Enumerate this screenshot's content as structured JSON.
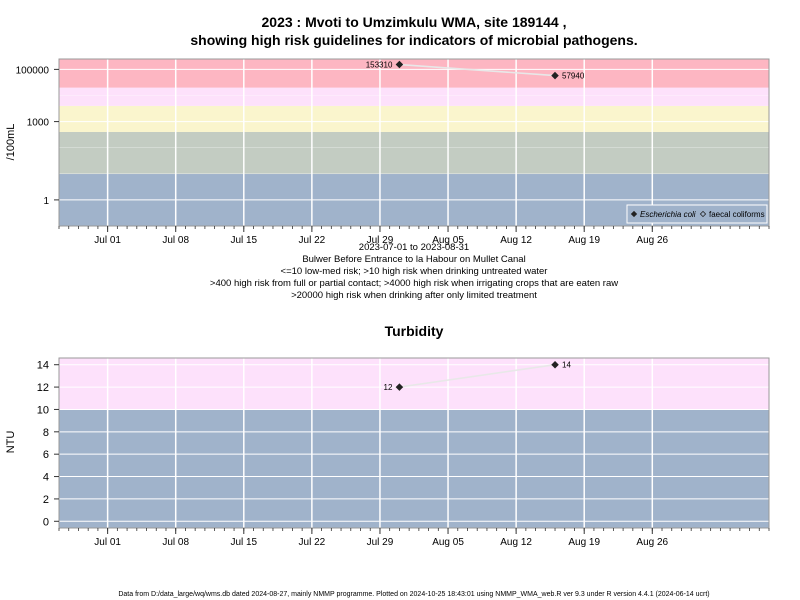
{
  "chart_data": [
    {
      "type": "line",
      "title_line1": "2023 : Mvoti to Umzimkulu WMA, site 189144 ,",
      "title_line2": "showing high risk guidelines for indicators of microbial pathogens.",
      "ylabel": "/100mL",
      "yscale": "log",
      "ylim": [
        0.1,
        250000
      ],
      "yticks": [
        {
          "value": 1,
          "label": "1"
        },
        {
          "value": 1000,
          "label": "1000"
        },
        {
          "value": 100000,
          "label": "100000"
        }
      ],
      "xlim": [
        "2023-06-26",
        "2023-09-07"
      ],
      "xticks": [
        {
          "date": "2023-07-01",
          "label": "Jul 01"
        },
        {
          "date": "2023-07-08",
          "label": "Jul 08"
        },
        {
          "date": "2023-07-15",
          "label": "Jul 15"
        },
        {
          "date": "2023-07-22",
          "label": "Jul 22"
        },
        {
          "date": "2023-07-29",
          "label": "Jul 29"
        },
        {
          "date": "2023-08-05",
          "label": "Aug 05"
        },
        {
          "date": "2023-08-12",
          "label": "Aug 12"
        },
        {
          "date": "2023-08-19",
          "label": "Aug 19"
        },
        {
          "date": "2023-08-26",
          "label": "Aug 26"
        }
      ],
      "bands": [
        {
          "from": 0.1,
          "to": 10,
          "color": "#a0b3cb"
        },
        {
          "from": 10,
          "to": 400,
          "color": "#c3ccc2"
        },
        {
          "from": 400,
          "to": 4000,
          "color": "#faf5cd"
        },
        {
          "from": 4000,
          "to": 20000,
          "color": "#fde1fb"
        },
        {
          "from": 20000,
          "to": 250000,
          "color": "#fdb6c2"
        }
      ],
      "series": [
        {
          "name": "Escherichia coli",
          "marker": "diamond-filled",
          "points": [
            {
              "x": "2023-07-31",
              "y": 153310,
              "label": "153310"
            },
            {
              "x": "2023-08-16",
              "y": 57940,
              "label": "57940"
            }
          ]
        },
        {
          "name": "faecal coliforms",
          "marker": "diamond-open",
          "points": []
        }
      ],
      "legend_position": "bottom-right",
      "notes": [
        "2023-07-01 to 2023-08-31",
        "Bulwer Before Entrance to la Habour on Mullet Canal",
        "<=10 low-med risk; >10 high risk when drinking untreated water",
        ">400 high risk from full or partial contact; >4000 high risk when irrigating crops that are eaten raw",
        ">20000 high risk when drinking after only limited treatment"
      ]
    },
    {
      "type": "line",
      "title": "Turbidity",
      "ylabel": "NTU",
      "ylim": [
        -0.6,
        14.6
      ],
      "yticks": [
        {
          "value": 0,
          "label": "0"
        },
        {
          "value": 2,
          "label": "2"
        },
        {
          "value": 4,
          "label": "4"
        },
        {
          "value": 6,
          "label": "6"
        },
        {
          "value": 8,
          "label": "8"
        },
        {
          "value": 10,
          "label": "10"
        },
        {
          "value": 12,
          "label": "12"
        },
        {
          "value": 14,
          "label": "14"
        }
      ],
      "xlim": [
        "2023-06-26",
        "2023-09-07"
      ],
      "xticks": [
        {
          "date": "2023-07-01",
          "label": "Jul 01"
        },
        {
          "date": "2023-07-08",
          "label": "Jul 08"
        },
        {
          "date": "2023-07-15",
          "label": "Jul 15"
        },
        {
          "date": "2023-07-22",
          "label": "Jul 22"
        },
        {
          "date": "2023-07-29",
          "label": "Jul 29"
        },
        {
          "date": "2023-08-05",
          "label": "Aug 05"
        },
        {
          "date": "2023-08-12",
          "label": "Aug 12"
        },
        {
          "date": "2023-08-19",
          "label": "Aug 19"
        },
        {
          "date": "2023-08-26",
          "label": "Aug 26"
        }
      ],
      "bands": [
        {
          "from": -0.6,
          "to": 10,
          "color": "#a0b3cb"
        },
        {
          "from": 10,
          "to": 14.6,
          "color": "#fde1fb"
        }
      ],
      "series": [
        {
          "name": "",
          "marker": "diamond-filled",
          "points": [
            {
              "x": "2023-07-31",
              "y": 12,
              "label": "12"
            },
            {
              "x": "2023-08-16",
              "y": 14,
              "label": "14"
            }
          ]
        }
      ]
    }
  ],
  "footer": "Data from D:/data_large/wq/wms.db dated 2024-08-27, mainly NMMP programme. Plotted on 2024-10-25 18:43:01 using NMMP_WMA_web.R ver 9.3 under R version 4.4.1 (2024-06-14 ucrt)"
}
